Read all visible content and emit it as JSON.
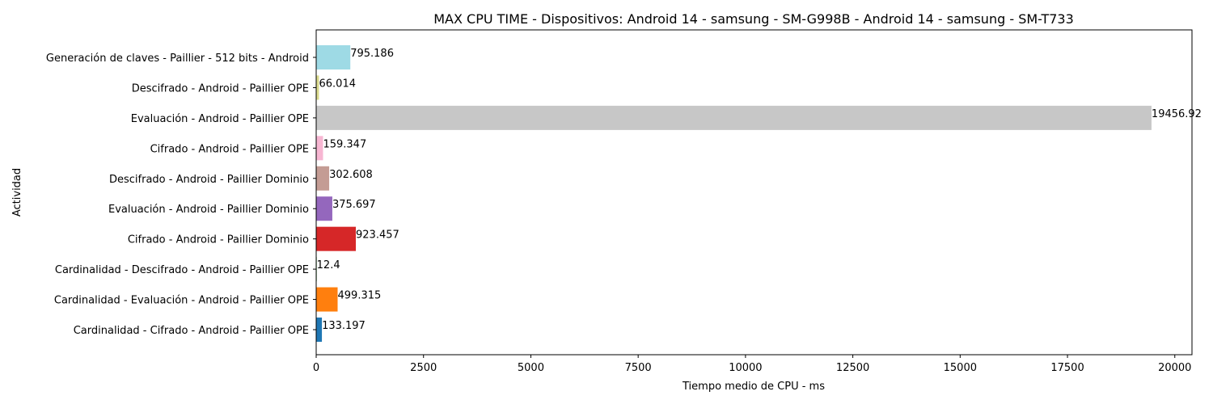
{
  "chart_data": {
    "type": "bar",
    "orientation": "horizontal",
    "title": "MAX CPU TIME - Dispositivos: Android 14 - samsung - SM-G998B - Android 14 - samsung - SM-T733",
    "xlabel": "Tiempo medio de CPU - ms",
    "ylabel": "Actividad",
    "xlim": [
      0,
      20400
    ],
    "xticks": [
      0,
      2500,
      5000,
      7500,
      10000,
      12500,
      15000,
      17500,
      20000
    ],
    "grid": false,
    "bars": [
      {
        "category": "Cardinalidad - Cifrado - Android - Paillier OPE",
        "value": 133.197,
        "label": "133.197",
        "color": "#1f77b4"
      },
      {
        "category": "Cardinalidad - Evaluación - Android - Paillier OPE",
        "value": 499.315,
        "label": "499.315",
        "color": "#ff7f0e"
      },
      {
        "category": "Cardinalidad - Descifrado - Android - Paillier OPE",
        "value": 12.4,
        "label": "12.4",
        "color": "#2ca02c"
      },
      {
        "category": "Cifrado - Android - Paillier Dominio",
        "value": 923.457,
        "label": "923.457",
        "color": "#d62728"
      },
      {
        "category": "Evaluación - Android - Paillier Dominio",
        "value": 375.697,
        "label": "375.697",
        "color": "#9467bd"
      },
      {
        "category": "Descifrado - Android - Paillier Dominio",
        "value": 302.608,
        "label": "302.608",
        "color": "#c49c94"
      },
      {
        "category": "Cifrado - Android - Paillier OPE",
        "value": 159.347,
        "label": "159.347",
        "color": "#f7b6d2"
      },
      {
        "category": "Evaluación - Android - Paillier OPE",
        "value": 19456.92,
        "label": "19456.92",
        "color": "#c7c7c7"
      },
      {
        "category": "Descifrado - Android - Paillier OPE",
        "value": 66.014,
        "label": "66.014",
        "color": "#dbdb8d"
      },
      {
        "category": "Generación de claves - Paillier - 512 bits - Android",
        "value": 795.186,
        "label": "795.186",
        "color": "#9edae5"
      }
    ]
  }
}
